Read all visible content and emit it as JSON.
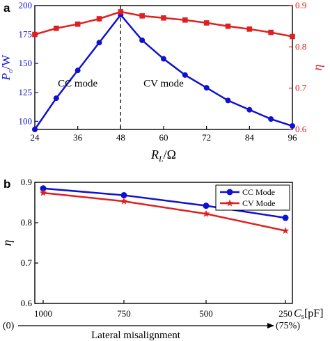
{
  "colors": {
    "blue": "#1010d0",
    "red": "#e02020",
    "black": "#000000"
  },
  "chart_data": [
    {
      "panel_label": "a",
      "type": "line",
      "x": [
        24,
        30,
        36,
        42,
        48,
        54,
        60,
        66,
        72,
        78,
        84,
        90,
        96
      ],
      "xlabel_main": "R",
      "xlabel_sub": "L",
      "xlabel_unit": "/Ω",
      "xlim": [
        24,
        96
      ],
      "xticks": [
        24,
        36,
        48,
        60,
        72,
        84,
        96
      ],
      "y_left": {
        "label_main": "P",
        "label_sub": "o",
        "label_unit": "/W",
        "lim": [
          93,
          200
        ],
        "ticks": [
          100,
          125,
          150,
          175,
          200
        ]
      },
      "y_right": {
        "label": "η",
        "lim": [
          0.6,
          0.9
        ],
        "ticks": [
          0.6,
          0.7,
          0.8,
          0.9
        ]
      },
      "series": [
        {
          "axis": "left",
          "color": "#1010d0",
          "marker": "circle",
          "values": [
            93,
            120,
            144,
            168,
            192,
            170,
            154,
            140,
            129,
            118,
            110,
            102,
            96
          ]
        },
        {
          "axis": "right",
          "color": "#e02020",
          "marker": "square",
          "values": [
            0.83,
            0.845,
            0.855,
            0.868,
            0.885,
            0.875,
            0.87,
            0.865,
            0.858,
            0.85,
            0.843,
            0.835,
            0.825
          ]
        }
      ],
      "divider_x": 48,
      "annotations": [
        {
          "text": "CC mode",
          "x": 36,
          "y": 130
        },
        {
          "text": "CV mode",
          "x": 60,
          "y": 130
        }
      ],
      "grid": false
    },
    {
      "panel_label": "b",
      "type": "line",
      "categories": [
        "1000",
        "750",
        "500",
        "250"
      ],
      "xlabel_main": "C",
      "xlabel_sub": "s",
      "xlabel_unit": "[pF]",
      "ylabel": "η",
      "ylim": [
        0.6,
        0.9
      ],
      "yticks": [
        0.6,
        0.7,
        0.8,
        0.9
      ],
      "series": [
        {
          "name": "CC Mode",
          "color": "#1010d0",
          "marker": "circle",
          "values": [
            0.885,
            0.868,
            0.842,
            0.812
          ]
        },
        {
          "name": "CV Mode",
          "color": "#e02020",
          "marker": "star",
          "values": [
            0.874,
            0.853,
            0.822,
            0.78
          ]
        }
      ],
      "legend_position": "top-right",
      "misalignment": {
        "start": "(0)",
        "end": "(75%)",
        "label": "Lateral misalignment"
      },
      "grid": false
    }
  ]
}
